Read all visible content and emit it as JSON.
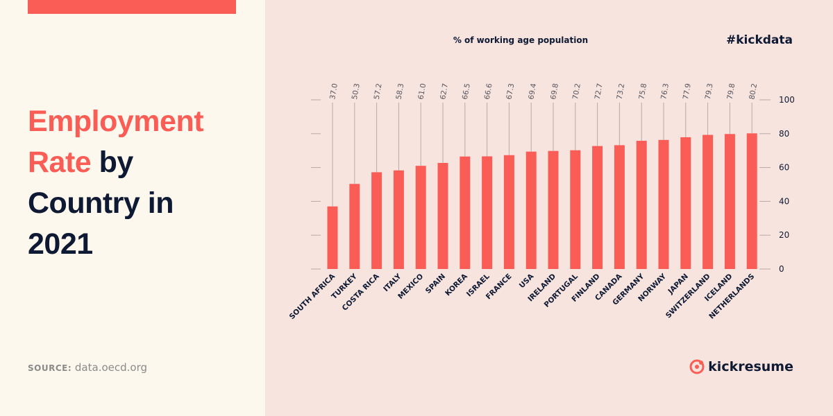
{
  "page": {
    "title_line1": "Employment",
    "title_line2_accent": "Rate",
    "title_line2_rest": " by",
    "title_line3": "Country in",
    "title_line4": "2021",
    "source_label": "SOURCE:",
    "source_text": " data.oecd.org",
    "hashtag": "#kickdata",
    "logo_text": "kickresume"
  },
  "colors": {
    "accent": "#fa5d55",
    "navy": "#0e1a33",
    "left_bg": "#fdf8ee",
    "right_bg": "#f8e4df"
  },
  "chart_data": {
    "type": "bar",
    "title": "% of working age population",
    "categories": [
      "SOUTH AFRICA",
      "TURKEY",
      "COSTA RICA",
      "ITALY",
      "MEXICO",
      "SPAIN",
      "KOREA",
      "ISRAEL",
      "FRANCE",
      "USA",
      "IRELAND",
      "PORTUGAL",
      "FINLAND",
      "CANADA",
      "GERMANY",
      "NORWAY",
      "JAPAN",
      "SWITZERLAND",
      "ICELAND",
      "NETHERLANDS"
    ],
    "values": [
      37.0,
      50.3,
      57.2,
      58.3,
      61.0,
      62.7,
      66.5,
      66.6,
      67.3,
      69.4,
      69.8,
      70.2,
      72.7,
      73.2,
      75.8,
      76.3,
      77.9,
      79.3,
      79.8,
      80.2
    ],
    "value_labels": [
      "37.0",
      "50.3",
      "57.2",
      "58.3",
      "61.0",
      "62.7",
      "66.5",
      "66.6",
      "67.3",
      "69.4",
      "69.8",
      "70.2",
      "72.7",
      "73.2",
      "75.8",
      "76.3",
      "77.9",
      "79.3",
      "79.8",
      "80.2"
    ],
    "ylim": [
      0,
      100
    ],
    "yticks": [
      "0",
      "20",
      "40",
      "60",
      "80",
      "100"
    ],
    "grid": false,
    "y_axis_side": "right"
  }
}
